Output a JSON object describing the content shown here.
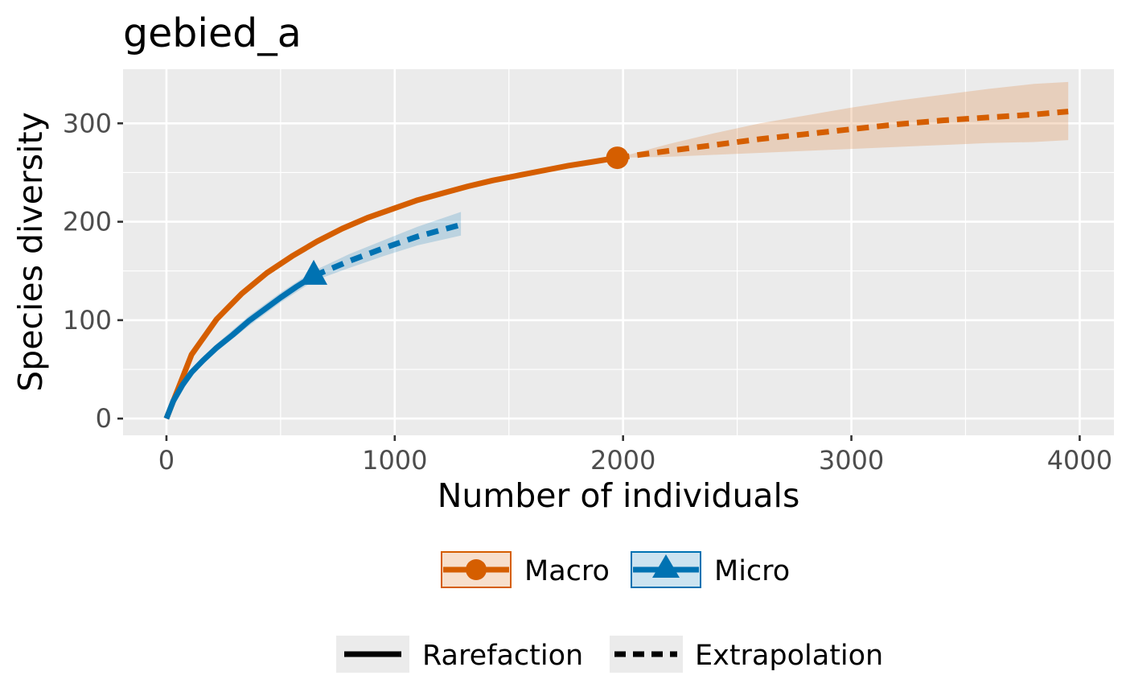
{
  "chart_data": {
    "type": "line",
    "title": "gebied_a",
    "xlabel": "Number of individuals",
    "ylabel": "Species diversity",
    "xlim": [
      -190,
      4150
    ],
    "ylim": [
      -17,
      355
    ],
    "x_ticks": [
      0,
      1000,
      2000,
      3000,
      4000
    ],
    "y_ticks": [
      0,
      100,
      200,
      300
    ],
    "x_tick_labels": [
      "0",
      "1000",
      "2000",
      "3000",
      "4000"
    ],
    "y_tick_labels": [
      "0",
      "100",
      "200",
      "300"
    ],
    "grid": true,
    "legend_position": "bottom",
    "series": [
      {
        "name": "Macro",
        "color": "#D55E00",
        "marker": "circle",
        "observed": {
          "x": 1975,
          "y": 265
        },
        "rarefaction": [
          [
            0,
            0
          ],
          [
            110,
            65
          ],
          [
            220,
            101
          ],
          [
            330,
            127
          ],
          [
            440,
            148
          ],
          [
            550,
            165
          ],
          [
            660,
            180
          ],
          [
            770,
            193
          ],
          [
            880,
            204
          ],
          [
            990,
            213
          ],
          [
            1100,
            222
          ],
          [
            1210,
            229
          ],
          [
            1320,
            236
          ],
          [
            1430,
            242
          ],
          [
            1540,
            247
          ],
          [
            1650,
            252
          ],
          [
            1760,
            257
          ],
          [
            1870,
            261
          ],
          [
            1975,
            265
          ]
        ],
        "extrapolation": [
          [
            1975,
            265
          ],
          [
            2200,
            272
          ],
          [
            2400,
            278
          ],
          [
            2600,
            284
          ],
          [
            2800,
            289
          ],
          [
            3000,
            294
          ],
          [
            3200,
            299
          ],
          [
            3400,
            303
          ],
          [
            3600,
            306
          ],
          [
            3800,
            309
          ],
          [
            3950,
            312
          ]
        ],
        "ci_upper": [
          [
            1975,
            265
          ],
          [
            2200,
            279
          ],
          [
            2400,
            290
          ],
          [
            2600,
            300
          ],
          [
            2800,
            308
          ],
          [
            3000,
            316
          ],
          [
            3200,
            323
          ],
          [
            3400,
            329
          ],
          [
            3600,
            335
          ],
          [
            3800,
            340
          ],
          [
            3950,
            342
          ]
        ],
        "ci_lower": [
          [
            1975,
            265
          ],
          [
            2200,
            266
          ],
          [
            2400,
            268
          ],
          [
            2600,
            270
          ],
          [
            2800,
            272
          ],
          [
            3000,
            274
          ],
          [
            3200,
            276
          ],
          [
            3400,
            278
          ],
          [
            3600,
            280
          ],
          [
            3800,
            281
          ],
          [
            3950,
            283
          ]
        ]
      },
      {
        "name": "Micro",
        "color": "#0072B2",
        "marker": "triangle",
        "observed": {
          "x": 645,
          "y": 145
        },
        "rarefaction": [
          [
            0,
            0
          ],
          [
            30,
            18
          ],
          [
            70,
            34
          ],
          [
            110,
            47
          ],
          [
            160,
            59
          ],
          [
            220,
            72
          ],
          [
            290,
            85
          ],
          [
            360,
            99
          ],
          [
            430,
            111
          ],
          [
            500,
            123
          ],
          [
            570,
            134
          ],
          [
            645,
            145
          ]
        ],
        "extrapolation": [
          [
            645,
            145
          ],
          [
            800,
            160
          ],
          [
            950,
            173
          ],
          [
            1100,
            185
          ],
          [
            1290,
            197
          ]
        ],
        "ci_upper": [
          [
            0,
            0
          ],
          [
            110,
            50
          ],
          [
            220,
            76
          ],
          [
            360,
            104
          ],
          [
            500,
            128
          ],
          [
            645,
            150
          ],
          [
            800,
            167
          ],
          [
            950,
            181
          ],
          [
            1100,
            195
          ],
          [
            1290,
            210
          ]
        ],
        "ci_lower": [
          [
            1290,
            186
          ],
          [
            1100,
            176
          ],
          [
            950,
            165
          ],
          [
            800,
            153
          ],
          [
            645,
            140
          ],
          [
            500,
            118
          ],
          [
            360,
            94
          ],
          [
            220,
            68
          ],
          [
            110,
            44
          ],
          [
            0,
            0
          ]
        ]
      }
    ],
    "linetype_legend": [
      {
        "label": "Rarefaction",
        "style": "solid"
      },
      {
        "label": "Extrapolation",
        "style": "dashed"
      }
    ]
  }
}
